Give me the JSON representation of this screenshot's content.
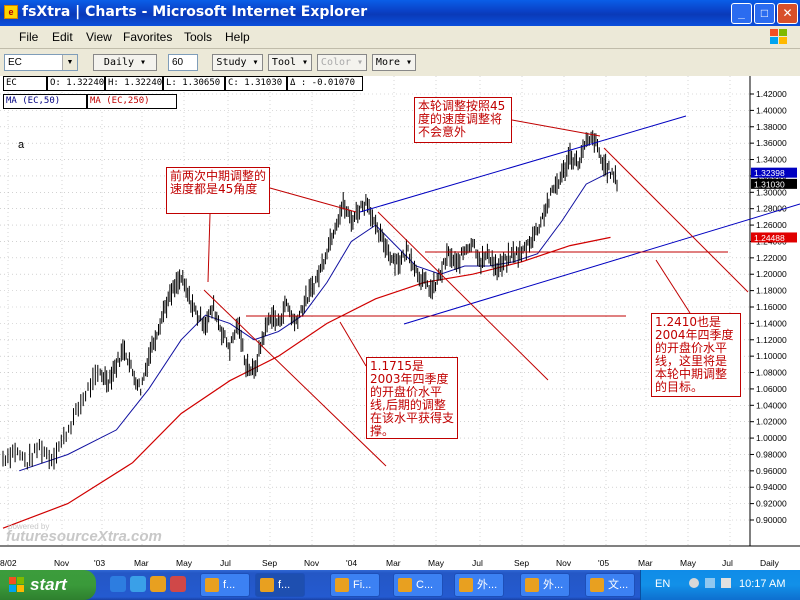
{
  "window": {
    "title": "fsXtra | Charts - Microsoft Internet Explorer",
    "min": "_",
    "max": "□",
    "close": "✕",
    "app_icon": "fs-icon"
  },
  "menu": [
    "File",
    "Edit",
    "View",
    "Favorites",
    "Tools",
    "Help"
  ],
  "toolbar": {
    "symbol": "EC",
    "period": "Daily",
    "bars": "60",
    "study": "Study",
    "tool": "Tool",
    "color": "Color",
    "more": "More"
  },
  "info": {
    "sym": "EC",
    "open": "O: 1.32240",
    "high": "H: 1.32240",
    "low": "L: 1.30650",
    "close": "C: 1.31030",
    "change": "Δ : -0.01070"
  },
  "legend": {
    "ma50": "MA (EC,50)",
    "ma250": "MA (EC,250)"
  },
  "chart_label": "a",
  "notes": {
    "top_right": "本轮调整按照45度的速度调整将不会意外",
    "left": "前两次中期调整的速度都是45角度",
    "middle": "1.1715是2003年四季度的开盘价水平线,后期的调整在该水平获得支撑。",
    "right": "1.2410也是2004年四季度的开盘价水平线，这里将是本轮中期调整的目标。"
  },
  "watermark": {
    "small": "powered by",
    "brand": "futuresourceXtra.com"
  },
  "chart_data": {
    "type": "line",
    "price_axis": [
      "1.42000",
      "1.40000",
      "1.38000",
      "1.36000",
      "1.34000",
      "1.32000",
      "1.30000",
      "1.28000",
      "1.26000",
      "1.24000",
      "1.22000",
      "1.20000",
      "1.18000",
      "1.16000",
      "1.14000",
      "1.12000",
      "1.10000",
      "1.08000",
      "1.06000",
      "1.04000",
      "1.02000",
      "1.00000",
      "0.98000",
      "0.96000",
      "0.94000",
      "0.92000",
      "0.90000"
    ],
    "ylim": [
      0.89,
      1.43
    ],
    "price_tags": [
      {
        "label": "1.32398",
        "value": 1.32398,
        "color": "#0000c0"
      },
      {
        "label": "1.31030",
        "value": 1.3103,
        "color": "#000000"
      },
      {
        "label": "1.24488",
        "value": 1.24488,
        "color": "#e00000"
      }
    ],
    "time_axis": [
      "8/02",
      "Nov",
      "'03",
      "Mar",
      "May",
      "Jul",
      "Sep",
      "Nov",
      "'04",
      "Mar",
      "May",
      "Jul",
      "Sep",
      "Nov",
      "'05",
      "Mar",
      "May",
      "Jul",
      "Daily"
    ],
    "price_path": [
      [
        0,
        0.975
      ],
      [
        1.5,
        0.985
      ],
      [
        3,
        0.97
      ],
      [
        4.5,
        0.99
      ],
      [
        6,
        0.975
      ],
      [
        7.5,
        1.0
      ],
      [
        9,
        1.03
      ],
      [
        10.5,
        1.06
      ],
      [
        12,
        1.08
      ],
      [
        13,
        1.07
      ],
      [
        14,
        1.09
      ],
      [
        15,
        1.11
      ],
      [
        16,
        1.08
      ],
      [
        17,
        1.06
      ],
      [
        18,
        1.1
      ],
      [
        19,
        1.13
      ],
      [
        20,
        1.16
      ],
      [
        21,
        1.18
      ],
      [
        22,
        1.195
      ],
      [
        23,
        1.17
      ],
      [
        24,
        1.15
      ],
      [
        25,
        1.14
      ],
      [
        26,
        1.16
      ],
      [
        27,
        1.13
      ],
      [
        28,
        1.11
      ],
      [
        29,
        1.14
      ],
      [
        30,
        1.09
      ],
      [
        31,
        1.08
      ],
      [
        32,
        1.12
      ],
      [
        33,
        1.15
      ],
      [
        34,
        1.14
      ],
      [
        35,
        1.165
      ],
      [
        36,
        1.14
      ],
      [
        37,
        1.16
      ],
      [
        38,
        1.18
      ],
      [
        39,
        1.2
      ],
      [
        40,
        1.23
      ],
      [
        41,
        1.26
      ],
      [
        42,
        1.285
      ],
      [
        43,
        1.265
      ],
      [
        44,
        1.28
      ],
      [
        45,
        1.29
      ],
      [
        46,
        1.255
      ],
      [
        47,
        1.24
      ],
      [
        48,
        1.22
      ],
      [
        49,
        1.215
      ],
      [
        50,
        1.23
      ],
      [
        51,
        1.205
      ],
      [
        52,
        1.19
      ],
      [
        53,
        1.18
      ],
      [
        54,
        1.2
      ],
      [
        55,
        1.225
      ],
      [
        56,
        1.21
      ],
      [
        57,
        1.23
      ],
      [
        58,
        1.24
      ],
      [
        59,
        1.215
      ],
      [
        60,
        1.225
      ],
      [
        61,
        1.205
      ],
      [
        62,
        1.215
      ],
      [
        63,
        1.225
      ],
      [
        64,
        1.225
      ],
      [
        65,
        1.24
      ],
      [
        66,
        1.255
      ],
      [
        67,
        1.28
      ],
      [
        68,
        1.305
      ],
      [
        69,
        1.32
      ],
      [
        70,
        1.345
      ],
      [
        71,
        1.335
      ],
      [
        72,
        1.36
      ],
      [
        73,
        1.365
      ],
      [
        74,
        1.335
      ],
      [
        75,
        1.325
      ],
      [
        76,
        1.31
      ]
    ],
    "ma50_path": [
      [
        2,
        0.96
      ],
      [
        8,
        0.98
      ],
      [
        14,
        1.01
      ],
      [
        18,
        1.06
      ],
      [
        22,
        1.12
      ],
      [
        25,
        1.15
      ],
      [
        28,
        1.14
      ],
      [
        31,
        1.12
      ],
      [
        34,
        1.13
      ],
      [
        37,
        1.15
      ],
      [
        40,
        1.19
      ],
      [
        43,
        1.24
      ],
      [
        46,
        1.26
      ],
      [
        48,
        1.24
      ],
      [
        51,
        1.21
      ],
      [
        54,
        1.2
      ],
      [
        57,
        1.21
      ],
      [
        60,
        1.21
      ],
      [
        63,
        1.215
      ],
      [
        66,
        1.225
      ],
      [
        69,
        1.265
      ],
      [
        72,
        1.31
      ],
      [
        75,
        1.325
      ]
    ],
    "ma250_path": [
      [
        0,
        0.89
      ],
      [
        8,
        0.92
      ],
      [
        16,
        0.97
      ],
      [
        22,
        1.03
      ],
      [
        28,
        1.07
      ],
      [
        34,
        1.1
      ],
      [
        40,
        1.14
      ],
      [
        46,
        1.17
      ],
      [
        52,
        1.19
      ],
      [
        58,
        1.2
      ],
      [
        64,
        1.215
      ],
      [
        70,
        1.235
      ],
      [
        75,
        1.245
      ]
    ]
  },
  "taskbar": {
    "start": "start",
    "tasks": [
      "f...",
      "f...",
      "Fi...",
      "C...",
      "外...",
      "外...",
      "文..."
    ],
    "lang": "EN",
    "clock": "10:17 AM"
  }
}
